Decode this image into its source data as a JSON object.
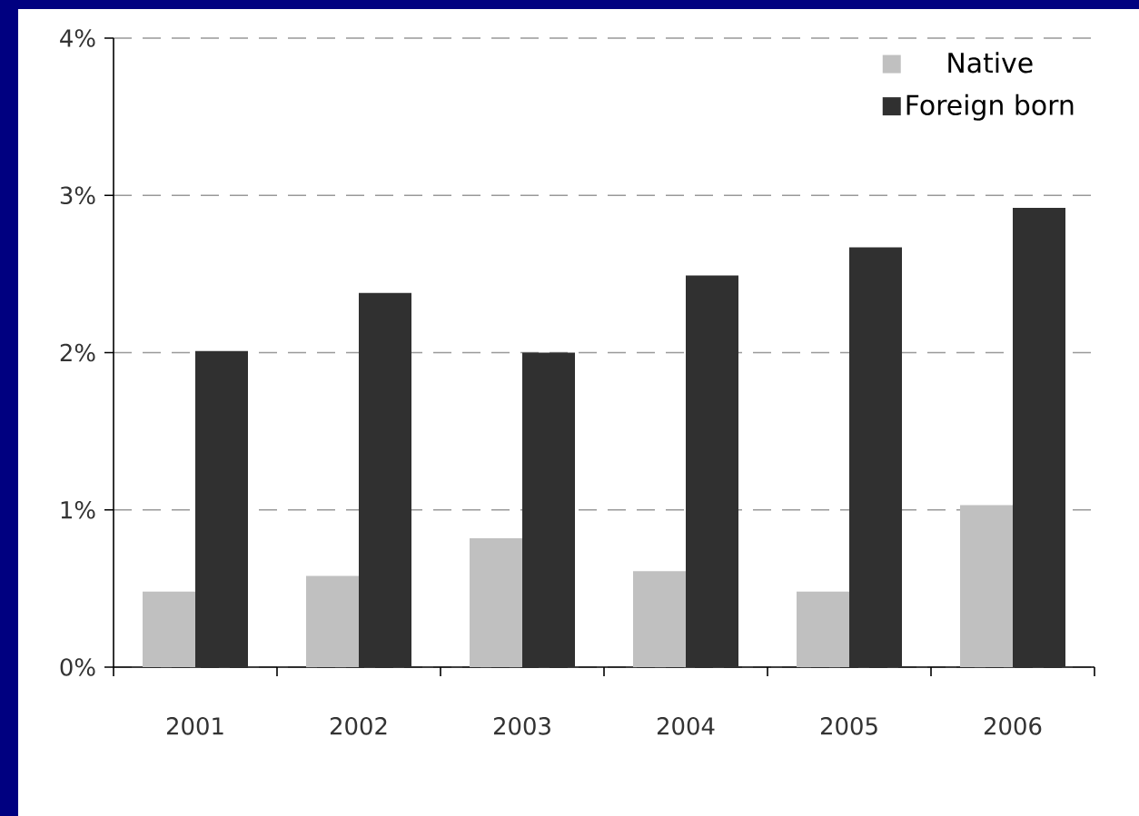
{
  "chart_data": {
    "type": "bar",
    "categories": [
      "2001",
      "2002",
      "2003",
      "2004",
      "2005",
      "2006"
    ],
    "series": [
      {
        "name": "Native",
        "color": "#c0c0c0",
        "values": [
          0.48,
          0.58,
          0.82,
          0.61,
          0.48,
          1.03
        ]
      },
      {
        "name": "Foreign born",
        "color": "#303030",
        "values": [
          2.01,
          2.38,
          2.0,
          2.49,
          2.67,
          2.92
        ]
      }
    ],
    "ylim": [
      0,
      4
    ],
    "yticks": [
      {
        "value": 0,
        "label": "0%"
      },
      {
        "value": 1,
        "label": "1%"
      },
      {
        "value": 2,
        "label": "2%"
      },
      {
        "value": 3,
        "label": "3%"
      },
      {
        "value": 4,
        "label": "4%"
      }
    ],
    "grid": "y",
    "legend": "top right"
  }
}
